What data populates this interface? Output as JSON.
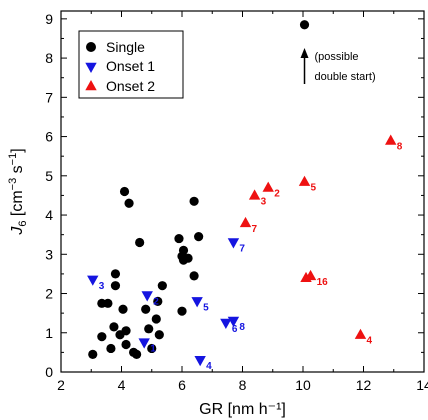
{
  "chart_data": {
    "type": "scatter",
    "title": "",
    "xlabel": "GR [nm h⁻¹]",
    "ylabel_main": "J",
    "ylabel_sub": "6",
    "ylabel_unit_open": " [cm",
    "ylabel_sup1": "−3",
    "ylabel_s": " s",
    "ylabel_sup2": "−1",
    "ylabel_close": "]",
    "xlim": [
      2,
      14
    ],
    "ylim": [
      0,
      9.2
    ],
    "xticks": [
      2,
      4,
      6,
      8,
      10,
      12,
      14
    ],
    "yticks": [
      0,
      1,
      2,
      3,
      4,
      5,
      6,
      7,
      8,
      9
    ],
    "legend_position": "top-left",
    "colors": {
      "Single": "#000000",
      "Onset 1": "#1515e0",
      "Onset 2": "#ee1111"
    },
    "series": [
      {
        "name": "Single",
        "marker": "circle",
        "points": [
          [
            3.05,
            0.45
          ],
          [
            3.35,
            0.9
          ],
          [
            3.35,
            1.75
          ],
          [
            3.55,
            1.75
          ],
          [
            3.65,
            0.6
          ],
          [
            3.75,
            1.15
          ],
          [
            3.8,
            2.2
          ],
          [
            3.8,
            2.5
          ],
          [
            3.95,
            0.95
          ],
          [
            4.05,
            1.6
          ],
          [
            4.1,
            4.6
          ],
          [
            4.15,
            0.7
          ],
          [
            4.15,
            1.05
          ],
          [
            4.25,
            4.3
          ],
          [
            4.4,
            0.5
          ],
          [
            4.5,
            0.45
          ],
          [
            4.6,
            3.3
          ],
          [
            4.8,
            1.6
          ],
          [
            4.9,
            1.1
          ],
          [
            5.0,
            0.6
          ],
          [
            5.15,
            1.35
          ],
          [
            5.2,
            1.8
          ],
          [
            5.25,
            0.95
          ],
          [
            5.35,
            2.2
          ],
          [
            5.9,
            3.4
          ],
          [
            6.0,
            2.95
          ],
          [
            6.0,
            1.55
          ],
          [
            6.05,
            3.1
          ],
          [
            6.05,
            2.85
          ],
          [
            6.2,
            2.9
          ],
          [
            6.4,
            2.45
          ],
          [
            6.4,
            4.35
          ],
          [
            6.55,
            3.45
          ],
          [
            10.05,
            8.85
          ]
        ]
      },
      {
        "name": "Onset 1",
        "marker": "triangle-down",
        "points": [
          [
            3.05,
            2.35
          ],
          [
            4.75,
            0.75
          ],
          [
            4.85,
            1.95
          ],
          [
            6.5,
            1.8
          ],
          [
            6.6,
            0.3
          ],
          [
            7.45,
            1.25
          ],
          [
            7.7,
            1.3
          ],
          [
            7.7,
            3.3
          ]
        ]
      },
      {
        "name": "Onset 2",
        "marker": "triangle-up",
        "points": [
          [
            8.1,
            3.8
          ],
          [
            8.4,
            4.5
          ],
          [
            8.85,
            4.7
          ],
          [
            10.05,
            4.85
          ],
          [
            10.1,
            2.4
          ],
          [
            10.25,
            2.45
          ],
          [
            11.9,
            0.95
          ],
          [
            12.9,
            5.9
          ]
        ]
      }
    ],
    "point_labels": [
      {
        "x": 3.05,
        "y": 2.35,
        "text": "3",
        "series": "Onset 1"
      },
      {
        "x": 4.75,
        "y": 0.75,
        "text": "1",
        "series": "Onset 1"
      },
      {
        "x": 4.85,
        "y": 1.95,
        "text": "2",
        "series": "Onset 1"
      },
      {
        "x": 6.5,
        "y": 1.8,
        "text": "5",
        "series": "Onset 1"
      },
      {
        "x": 6.6,
        "y": 0.3,
        "text": "4",
        "series": "Onset 1"
      },
      {
        "x": 7.45,
        "y": 1.25,
        "text": "6",
        "series": "Onset 1"
      },
      {
        "x": 7.7,
        "y": 1.3,
        "text": "8",
        "series": "Onset 1"
      },
      {
        "x": 7.7,
        "y": 3.3,
        "text": "7",
        "series": "Onset 1"
      },
      {
        "x": 8.1,
        "y": 3.8,
        "text": "7",
        "series": "Onset 2"
      },
      {
        "x": 8.4,
        "y": 4.5,
        "text": "3",
        "series": "Onset 2"
      },
      {
        "x": 8.85,
        "y": 4.7,
        "text": "2",
        "series": "Onset 2"
      },
      {
        "x": 10.05,
        "y": 4.85,
        "text": "5",
        "series": "Onset 2"
      },
      {
        "x": 10.25,
        "y": 2.45,
        "text": "16",
        "series": "Onset 2"
      },
      {
        "x": 11.9,
        "y": 0.95,
        "text": "4",
        "series": "Onset 2"
      },
      {
        "x": 12.9,
        "y": 5.9,
        "text": "8",
        "series": "Onset 2"
      }
    ],
    "annotation": {
      "line1": "(possible",
      "line2": "double start)",
      "arrow": true
    }
  }
}
